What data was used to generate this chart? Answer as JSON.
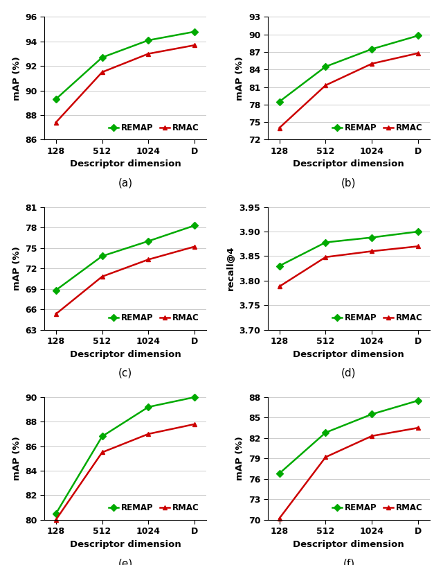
{
  "subplots": [
    {
      "label": "(a)",
      "ylabel": "mAP (%)",
      "xlabel": "Descriptor dimension",
      "ylim": [
        86,
        96
      ],
      "yticks": [
        86,
        88,
        90,
        92,
        94,
        96
      ],
      "remap": [
        89.3,
        92.7,
        94.1,
        94.8
      ],
      "rmac": [
        87.4,
        91.5,
        93.0,
        93.7
      ]
    },
    {
      "label": "(b)",
      "ylabel": "mAP (%)",
      "xlabel": "Descriptor dimension",
      "ylim": [
        72,
        93
      ],
      "yticks": [
        72,
        75,
        78,
        81,
        84,
        87,
        90,
        93
      ],
      "remap": [
        78.5,
        84.5,
        87.5,
        89.8
      ],
      "rmac": [
        74.0,
        81.3,
        85.0,
        86.8
      ]
    },
    {
      "label": "(c)",
      "ylabel": "mAP (%)",
      "xlabel": "Descriptor dimension",
      "ylim": [
        63,
        81
      ],
      "yticks": [
        63,
        66,
        69,
        72,
        75,
        78,
        81
      ],
      "remap": [
        68.8,
        73.8,
        76.0,
        78.3
      ],
      "rmac": [
        65.3,
        70.8,
        73.3,
        75.2
      ]
    },
    {
      "label": "(d)",
      "ylabel": "recall@4",
      "xlabel": "Descriptor dimension",
      "ylim": [
        3.7,
        3.95
      ],
      "yticks": [
        3.7,
        3.75,
        3.8,
        3.85,
        3.9,
        3.95
      ],
      "remap": [
        3.83,
        3.878,
        3.888,
        3.9
      ],
      "rmac": [
        3.788,
        3.848,
        3.86,
        3.87
      ]
    },
    {
      "label": "(e)",
      "ylabel": "mAP (%)",
      "xlabel": "Descriptor dimension",
      "ylim": [
        80,
        90
      ],
      "yticks": [
        80,
        82,
        84,
        86,
        88,
        90
      ],
      "remap": [
        80.5,
        86.8,
        89.2,
        90.0
      ],
      "rmac": [
        80.0,
        85.5,
        87.0,
        87.8
      ]
    },
    {
      "label": "(f)",
      "ylabel": "mAP (%)",
      "xlabel": "Descriptor dimension",
      "ylim": [
        70,
        88
      ],
      "yticks": [
        70,
        73,
        76,
        79,
        82,
        85,
        88
      ],
      "remap": [
        76.8,
        82.8,
        85.5,
        87.5
      ],
      "rmac": [
        70.2,
        79.2,
        82.3,
        83.5
      ]
    }
  ],
  "x_tick_labels": [
    "128",
    "512",
    "1024",
    "D"
  ],
  "x_positions": [
    0,
    1,
    2,
    3
  ],
  "remap_color": "#00aa00",
  "rmac_color": "#cc0000",
  "marker_remap": "D",
  "marker_rmac": "^",
  "linewidth": 1.8,
  "markersize": 5,
  "legend_fontsize": 8.5,
  "tick_fontsize": 9,
  "label_fontsize": 9.5,
  "caption_fontsize": 11
}
